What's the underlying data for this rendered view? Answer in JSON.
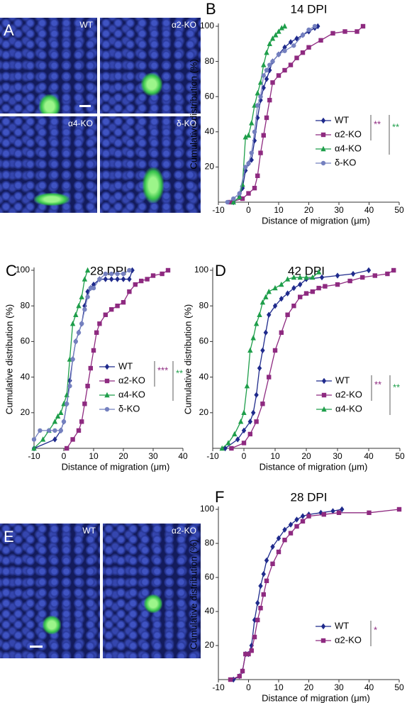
{
  "images": [
    {
      "panel": "A",
      "labels": [
        "WT",
        "α2-KO",
        "α4-KO",
        "δ-KO"
      ]
    },
    {
      "panel": "E",
      "labels": [
        "WT",
        "α2-KO"
      ]
    }
  ],
  "chart_data": [
    {
      "type": "line",
      "panel": "B",
      "title": "14 DPI",
      "xlabel": "Distance of migration (μm)",
      "ylabel": "Cumulative distribution (%)",
      "xlim": [
        -10,
        50
      ],
      "xticks": [
        -10,
        0,
        10,
        20,
        30,
        40,
        50
      ],
      "ylim": [
        0,
        100
      ],
      "yticks": [
        20,
        40,
        60,
        80,
        100
      ],
      "legend": "lower right",
      "series": [
        {
          "name": "WT",
          "color": "#1f2a8c",
          "marker": "diamond",
          "x": [
            -5,
            -3,
            -2,
            -1,
            0,
            1,
            2,
            3,
            4,
            5,
            6,
            7,
            8,
            10,
            12,
            14,
            16,
            18,
            20,
            22,
            23
          ],
          "values": [
            0,
            3,
            8,
            18,
            22,
            24,
            35,
            48,
            58,
            65,
            70,
            75,
            80,
            84,
            88,
            91,
            93,
            95,
            97,
            99,
            100
          ]
        },
        {
          "name": "α2-KO",
          "color": "#8e2a80",
          "marker": "square",
          "x": [
            -6,
            -2,
            0,
            2,
            3,
            4,
            5,
            6,
            7,
            8,
            10,
            12,
            14,
            16,
            18,
            20,
            24,
            28,
            32,
            36,
            38
          ],
          "values": [
            0,
            2,
            5,
            8,
            15,
            28,
            38,
            48,
            58,
            68,
            72,
            75,
            78,
            82,
            85,
            88,
            92,
            96,
            97,
            97,
            100
          ]
        },
        {
          "name": "α4-KO",
          "color": "#1e9e4a",
          "marker": "triangle",
          "x": [
            -5,
            -3,
            -2,
            -1,
            0,
            1,
            2,
            3,
            4,
            5,
            6,
            7,
            8,
            9,
            10,
            11,
            12
          ],
          "values": [
            0,
            3,
            10,
            37,
            38,
            45,
            55,
            62,
            68,
            78,
            85,
            90,
            93,
            95,
            97,
            99,
            100
          ]
        },
        {
          "name": "δ-KO",
          "color": "#7480bf",
          "marker": "circle",
          "x": [
            -7,
            -5,
            -3,
            -1,
            0,
            1,
            2,
            3,
            4,
            5,
            6,
            7,
            8,
            10,
            12,
            15,
            18,
            20,
            22
          ],
          "values": [
            0,
            2,
            5,
            20,
            22,
            28,
            40,
            55,
            60,
            72,
            75,
            78,
            80,
            84,
            86,
            89,
            95,
            98,
            100
          ]
        }
      ],
      "significance": [
        {
          "text": "**",
          "color": "#8e2a80"
        },
        {
          "text": "**",
          "color": "#1e9e4a"
        }
      ]
    },
    {
      "type": "line",
      "panel": "C",
      "title": "28 DPI",
      "xlabel": "Distance of migration (μm)",
      "ylabel": "Cumulative distribution (%)",
      "xlim": [
        -10,
        40
      ],
      "xticks": [
        -10,
        0,
        10,
        20,
        30,
        40
      ],
      "ylim": [
        0,
        100
      ],
      "yticks": [
        20,
        40,
        60,
        80,
        100
      ],
      "legend": "lower right",
      "series": [
        {
          "name": "WT",
          "color": "#1f2a8c",
          "marker": "diamond",
          "x": [
            -10,
            -3,
            -1,
            0,
            1,
            2,
            3,
            4,
            5,
            6,
            7,
            8,
            9,
            10,
            12,
            14,
            16,
            18,
            20,
            22,
            23
          ],
          "values": [
            0,
            5,
            10,
            15,
            25,
            38,
            50,
            60,
            65,
            70,
            80,
            88,
            90,
            92,
            95,
            95,
            95,
            95,
            95,
            95,
            100
          ]
        },
        {
          "name": "α2-KO",
          "color": "#8e2a80",
          "marker": "square",
          "x": [
            1,
            3,
            5,
            6,
            7,
            8,
            9,
            10,
            11,
            12,
            14,
            16,
            18,
            20,
            22,
            24,
            26,
            28,
            30,
            33,
            35
          ],
          "values": [
            0,
            5,
            10,
            15,
            25,
            35,
            45,
            55,
            65,
            70,
            75,
            78,
            80,
            82,
            88,
            92,
            94,
            95,
            97,
            98,
            100
          ]
        },
        {
          "name": "α4-KO",
          "color": "#1e9e4a",
          "marker": "triangle",
          "x": [
            -10,
            -7,
            -5,
            -3,
            -2,
            -1,
            0,
            1,
            2,
            3,
            4,
            5,
            6,
            7,
            8
          ],
          "values": [
            0,
            5,
            10,
            15,
            18,
            20,
            25,
            30,
            50,
            70,
            75,
            80,
            85,
            95,
            100
          ]
        },
        {
          "name": "δ-KO",
          "color": "#7480bf",
          "marker": "circle",
          "x": [
            -10,
            -8,
            -5,
            -3,
            -1,
            0,
            1,
            2,
            3,
            4,
            5,
            6,
            7,
            8,
            9,
            10,
            12,
            14,
            16,
            18,
            20,
            22
          ],
          "values": [
            5,
            10,
            10,
            10,
            10,
            15,
            25,
            35,
            50,
            60,
            65,
            70,
            78,
            85,
            90,
            90,
            95,
            98,
            98,
            98,
            98,
            100
          ]
        }
      ],
      "significance": [
        {
          "text": "***",
          "color": "#8e2a80"
        },
        {
          "text": "**",
          "color": "#1e9e4a"
        }
      ]
    },
    {
      "type": "line",
      "panel": "D",
      "title": "42 DPI",
      "xlabel": "Distance of migration (μm)",
      "ylabel": "Cumulative distribution (%)",
      "xlim": [
        -10,
        50
      ],
      "xticks": [
        -10,
        0,
        10,
        20,
        30,
        40,
        50
      ],
      "ylim": [
        0,
        100
      ],
      "yticks": [
        20,
        40,
        60,
        80,
        100
      ],
      "legend": "lower right",
      "series": [
        {
          "name": "WT",
          "color": "#1f2a8c",
          "marker": "diamond",
          "x": [
            -6,
            -2,
            0,
            2,
            3,
            4,
            5,
            6,
            7,
            8,
            10,
            12,
            14,
            16,
            18,
            20,
            25,
            30,
            35,
            40
          ],
          "values": [
            0,
            5,
            10,
            15,
            20,
            30,
            45,
            55,
            65,
            75,
            80,
            84,
            87,
            90,
            92,
            95,
            96,
            97,
            98,
            100
          ]
        },
        {
          "name": "α2-KO",
          "color": "#8e2a80",
          "marker": "square",
          "x": [
            -4,
            0,
            2,
            4,
            6,
            8,
            10,
            12,
            14,
            16,
            18,
            20,
            22,
            24,
            26,
            30,
            34,
            38,
            42,
            46,
            48
          ],
          "values": [
            0,
            3,
            8,
            15,
            25,
            40,
            55,
            65,
            75,
            80,
            85,
            87,
            88,
            90,
            91,
            92,
            94,
            96,
            97,
            98,
            100
          ]
        },
        {
          "name": "α4-KO",
          "color": "#1e9e4a",
          "marker": "triangle",
          "x": [
            -7,
            -5,
            -3,
            -1,
            0,
            1,
            2,
            3,
            4,
            5,
            6,
            7,
            8,
            10,
            12,
            14,
            16,
            18,
            20,
            22,
            24
          ],
          "values": [
            0,
            3,
            8,
            15,
            20,
            35,
            55,
            62,
            70,
            75,
            82,
            85,
            88,
            90,
            92,
            95,
            96,
            96,
            96,
            96,
            99
          ]
        }
      ],
      "significance": [
        {
          "text": "**",
          "color": "#8e2a80"
        },
        {
          "text": "**",
          "color": "#1e9e4a"
        }
      ]
    },
    {
      "type": "line",
      "panel": "F",
      "title": "28 DPI",
      "xlabel": "Distance of migration (μm)",
      "ylabel": "Cumulative distribution (%)",
      "xlim": [
        -10,
        50
      ],
      "xticks": [
        -10,
        0,
        10,
        20,
        30,
        40,
        50
      ],
      "ylim": [
        0,
        100
      ],
      "yticks": [
        20,
        40,
        60,
        80,
        100
      ],
      "legend": "lower right",
      "series": [
        {
          "name": "WT",
          "color": "#1f2a8c",
          "marker": "diamond",
          "x": [
            -5,
            -3,
            -2,
            -1,
            0,
            1,
            2,
            3,
            4,
            5,
            6,
            8,
            10,
            12,
            14,
            16,
            18,
            20,
            24,
            28,
            31
          ],
          "values": [
            0,
            2,
            5,
            15,
            15,
            20,
            35,
            45,
            55,
            62,
            70,
            78,
            83,
            88,
            91,
            94,
            96,
            97,
            98,
            99,
            100
          ]
        },
        {
          "name": "α2-KO",
          "color": "#8e2a80",
          "marker": "square",
          "x": [
            -6,
            -3,
            -2,
            -1,
            0,
            1,
            2,
            3,
            4,
            5,
            6,
            8,
            10,
            12,
            14,
            16,
            18,
            20,
            25,
            30,
            40,
            50
          ],
          "values": [
            0,
            2,
            5,
            15,
            15,
            17,
            25,
            35,
            42,
            50,
            58,
            68,
            75,
            82,
            86,
            90,
            93,
            96,
            97,
            98,
            98,
            100
          ]
        }
      ],
      "significance": [
        {
          "text": "*",
          "color": "#8e2a80"
        }
      ]
    }
  ]
}
